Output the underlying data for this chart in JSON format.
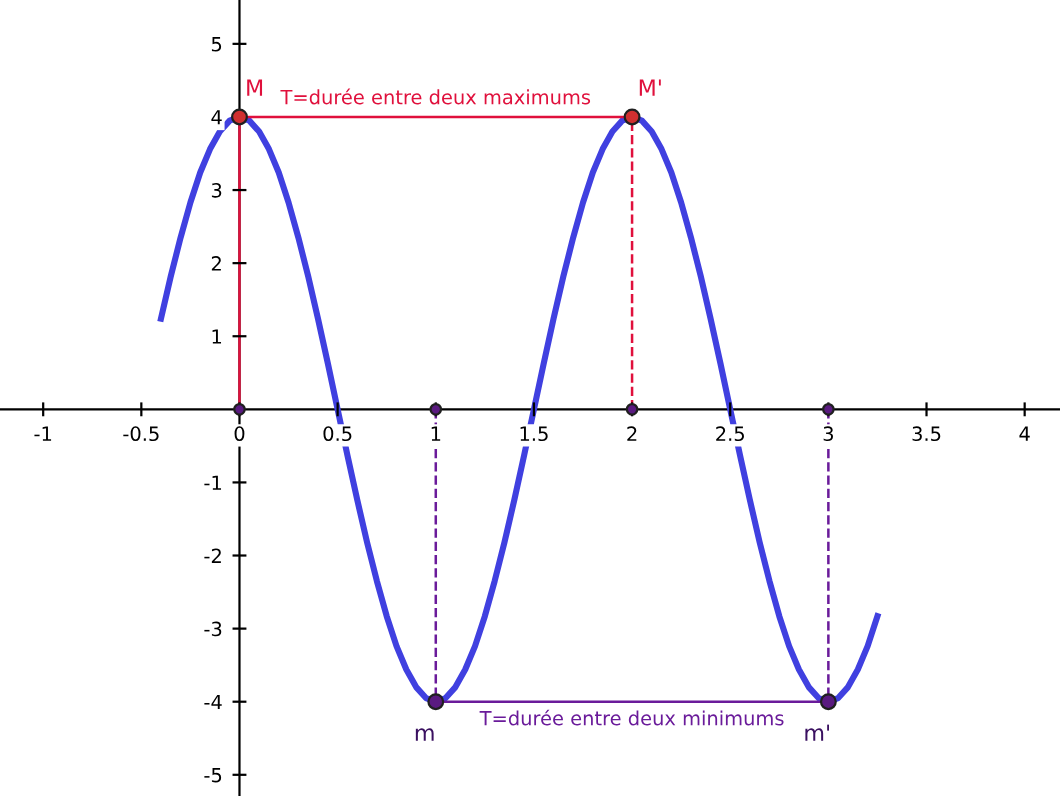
{
  "chart_data": {
    "type": "line",
    "xlim": [
      -1.22,
      4.18
    ],
    "ylim": [
      -5.29,
      5.6
    ],
    "xticks": [
      -1,
      -0.5,
      0,
      0.5,
      1,
      1.5,
      2,
      2.5,
      3,
      3.5,
      4
    ],
    "yticks": [
      -5,
      -4,
      -3,
      -2,
      -1,
      1,
      2,
      3,
      4,
      5
    ],
    "grid": false,
    "legend": false,
    "series": [
      {
        "color": "#4040e0",
        "line_style": "solid",
        "x": [
          -0.4,
          -0.35,
          -0.3,
          -0.25,
          -0.2,
          -0.15,
          -0.1,
          -0.05,
          0,
          0.05,
          0.1,
          0.15,
          0.2,
          0.25,
          0.3,
          0.35,
          0.4,
          0.45,
          0.5,
          0.55,
          0.6,
          0.65,
          0.7,
          0.75,
          0.8,
          0.85,
          0.9,
          0.95,
          1,
          1.05,
          1.1,
          1.15,
          1.2,
          1.25,
          1.3,
          1.35,
          1.4,
          1.45,
          1.5,
          1.55,
          1.6,
          1.65,
          1.7,
          1.75,
          1.8,
          1.85,
          1.9,
          1.95,
          2,
          2.05,
          2.1,
          2.15,
          2.2,
          2.25,
          2.3,
          2.35,
          2.4,
          2.45,
          2.5,
          2.55,
          2.6,
          2.65,
          2.7,
          2.75,
          2.8,
          2.85,
          2.9,
          2.95,
          3,
          3.05,
          3.1,
          3.15,
          3.2,
          3.25
        ],
        "values": [
          1.24,
          1.82,
          2.35,
          2.83,
          3.24,
          3.56,
          3.8,
          3.95,
          4,
          3.95,
          3.8,
          3.56,
          3.24,
          2.83,
          2.35,
          1.82,
          1.24,
          0.63,
          0,
          -0.63,
          -1.24,
          -1.82,
          -2.35,
          -2.83,
          -3.24,
          -3.56,
          -3.8,
          -3.95,
          -4,
          -3.95,
          -3.8,
          -3.56,
          -3.24,
          -2.83,
          -2.35,
          -1.82,
          -1.24,
          -0.63,
          0,
          0.63,
          1.24,
          1.82,
          2.35,
          2.83,
          3.24,
          3.56,
          3.8,
          3.95,
          4,
          3.95,
          3.8,
          3.56,
          3.24,
          2.83,
          2.35,
          1.82,
          1.24,
          0.63,
          0,
          -0.63,
          -1.24,
          -1.82,
          -2.35,
          -2.83,
          -3.24,
          -3.56,
          -3.8,
          -3.95,
          -4,
          -3.95,
          -3.8,
          -3.56,
          -3.24,
          -2.83
        ]
      },
      {
        "type": "line",
        "color": "#e0103c",
        "line_style": "solid",
        "x": [
          0,
          2
        ],
        "values": [
          4,
          4
        ]
      },
      {
        "type": "line",
        "color": "#e0103c",
        "line_style": "solid",
        "x": [
          0,
          0
        ],
        "values": [
          0,
          4
        ]
      },
      {
        "type": "line",
        "color": "#e0103c",
        "line_style": "dashed",
        "x": [
          2,
          2
        ],
        "values": [
          0,
          4
        ]
      },
      {
        "type": "line",
        "color": "#6a1b9a",
        "line_style": "solid",
        "x": [
          1,
          3
        ],
        "values": [
          -4,
          -4
        ]
      },
      {
        "type": "line",
        "color": "#6a1b9a",
        "line_style": "dashed",
        "x": [
          1,
          1
        ],
        "values": [
          0,
          -4
        ]
      },
      {
        "type": "line",
        "color": "#6a1b9a",
        "line_style": "dashed",
        "x": [
          3,
          3
        ],
        "values": [
          0,
          -4
        ]
      },
      {
        "type": "scatter",
        "color": "#d03030",
        "marker": "circle",
        "x": [
          0,
          2
        ],
        "values": [
          4,
          4
        ]
      },
      {
        "type": "scatter",
        "color": "#5a1a80",
        "marker": "circle",
        "x": [
          1,
          3
        ],
        "values": [
          -4,
          -4
        ]
      },
      {
        "type": "scatter",
        "color": "#5a1a80",
        "marker": "circle",
        "x": [
          0,
          1,
          2,
          3
        ],
        "values": [
          0,
          0,
          0,
          0
        ]
      }
    ],
    "annotations": [
      {
        "text": "M",
        "x": 0,
        "y": 4
      },
      {
        "text": "M'",
        "x": 2,
        "y": 4
      },
      {
        "text": "m",
        "x": 1,
        "y": -4
      },
      {
        "text": "m'",
        "x": 3,
        "y": -4
      },
      {
        "text": "T=durée entre deux maximums",
        "x": 1,
        "y": 4
      },
      {
        "text": "T=durée entre deux minimums",
        "x": 2,
        "y": -4
      }
    ]
  }
}
